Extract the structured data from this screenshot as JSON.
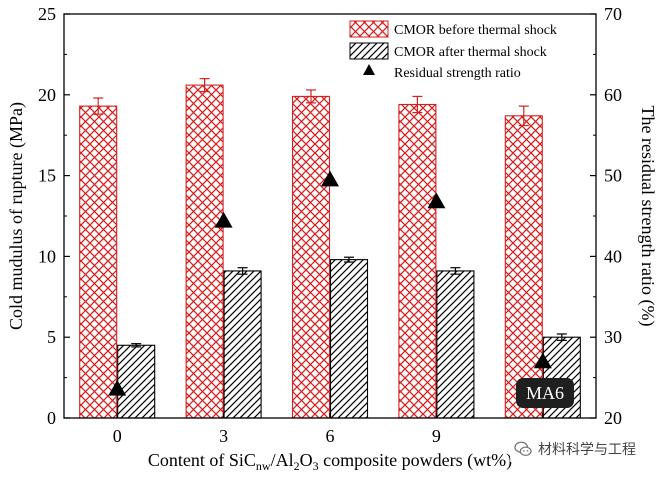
{
  "chart_data": {
    "type": "bar",
    "categories": [
      "0",
      "3",
      "6",
      "9",
      ""
    ],
    "xlabel_parts": {
      "pre": "Content of SiC",
      "sub1": "nw",
      "mid": "/Al",
      "sub2": "2",
      "mid2": "O",
      "sub3": "3",
      "post": " composite powders (wt%)"
    },
    "ylabel_left": "Cold mudulus of rupture (MPa)",
    "ylabel_right": "The residual strength ratio (%)",
    "ylim_left": [
      0,
      25
    ],
    "ylim_right": [
      20,
      70
    ],
    "yticks_left": [
      0,
      5,
      10,
      15,
      20,
      25
    ],
    "yticks_right": [
      20,
      30,
      40,
      50,
      60,
      70
    ],
    "series": [
      {
        "name": "CMOR before thermal shock",
        "axis": "left",
        "kind": "bar",
        "pattern": "crosshatch",
        "color": "#d42020",
        "values": [
          19.3,
          20.6,
          19.9,
          19.4,
          18.7
        ],
        "errors": [
          0.5,
          0.4,
          0.4,
          0.5,
          0.6
        ]
      },
      {
        "name": "CMOR after thermal shock",
        "axis": "left",
        "kind": "bar",
        "pattern": "diagonal",
        "color": "#000000",
        "values": [
          4.5,
          9.1,
          9.8,
          9.1,
          5.0
        ],
        "errors": [
          0.1,
          0.2,
          0.15,
          0.2,
          0.2
        ]
      },
      {
        "name": "Residual strength ratio",
        "axis": "right",
        "kind": "marker",
        "marker": "triangle",
        "color": "#000000",
        "values": [
          23.6,
          44.4,
          49.5,
          46.8,
          27.0
        ]
      }
    ],
    "annotations": [
      {
        "text": "MA6",
        "category_index": 4
      }
    ],
    "legend_position": "top-right",
    "grid": false
  },
  "watermark": {
    "text": "材料科学与工程",
    "icon": "wechat-icon"
  }
}
